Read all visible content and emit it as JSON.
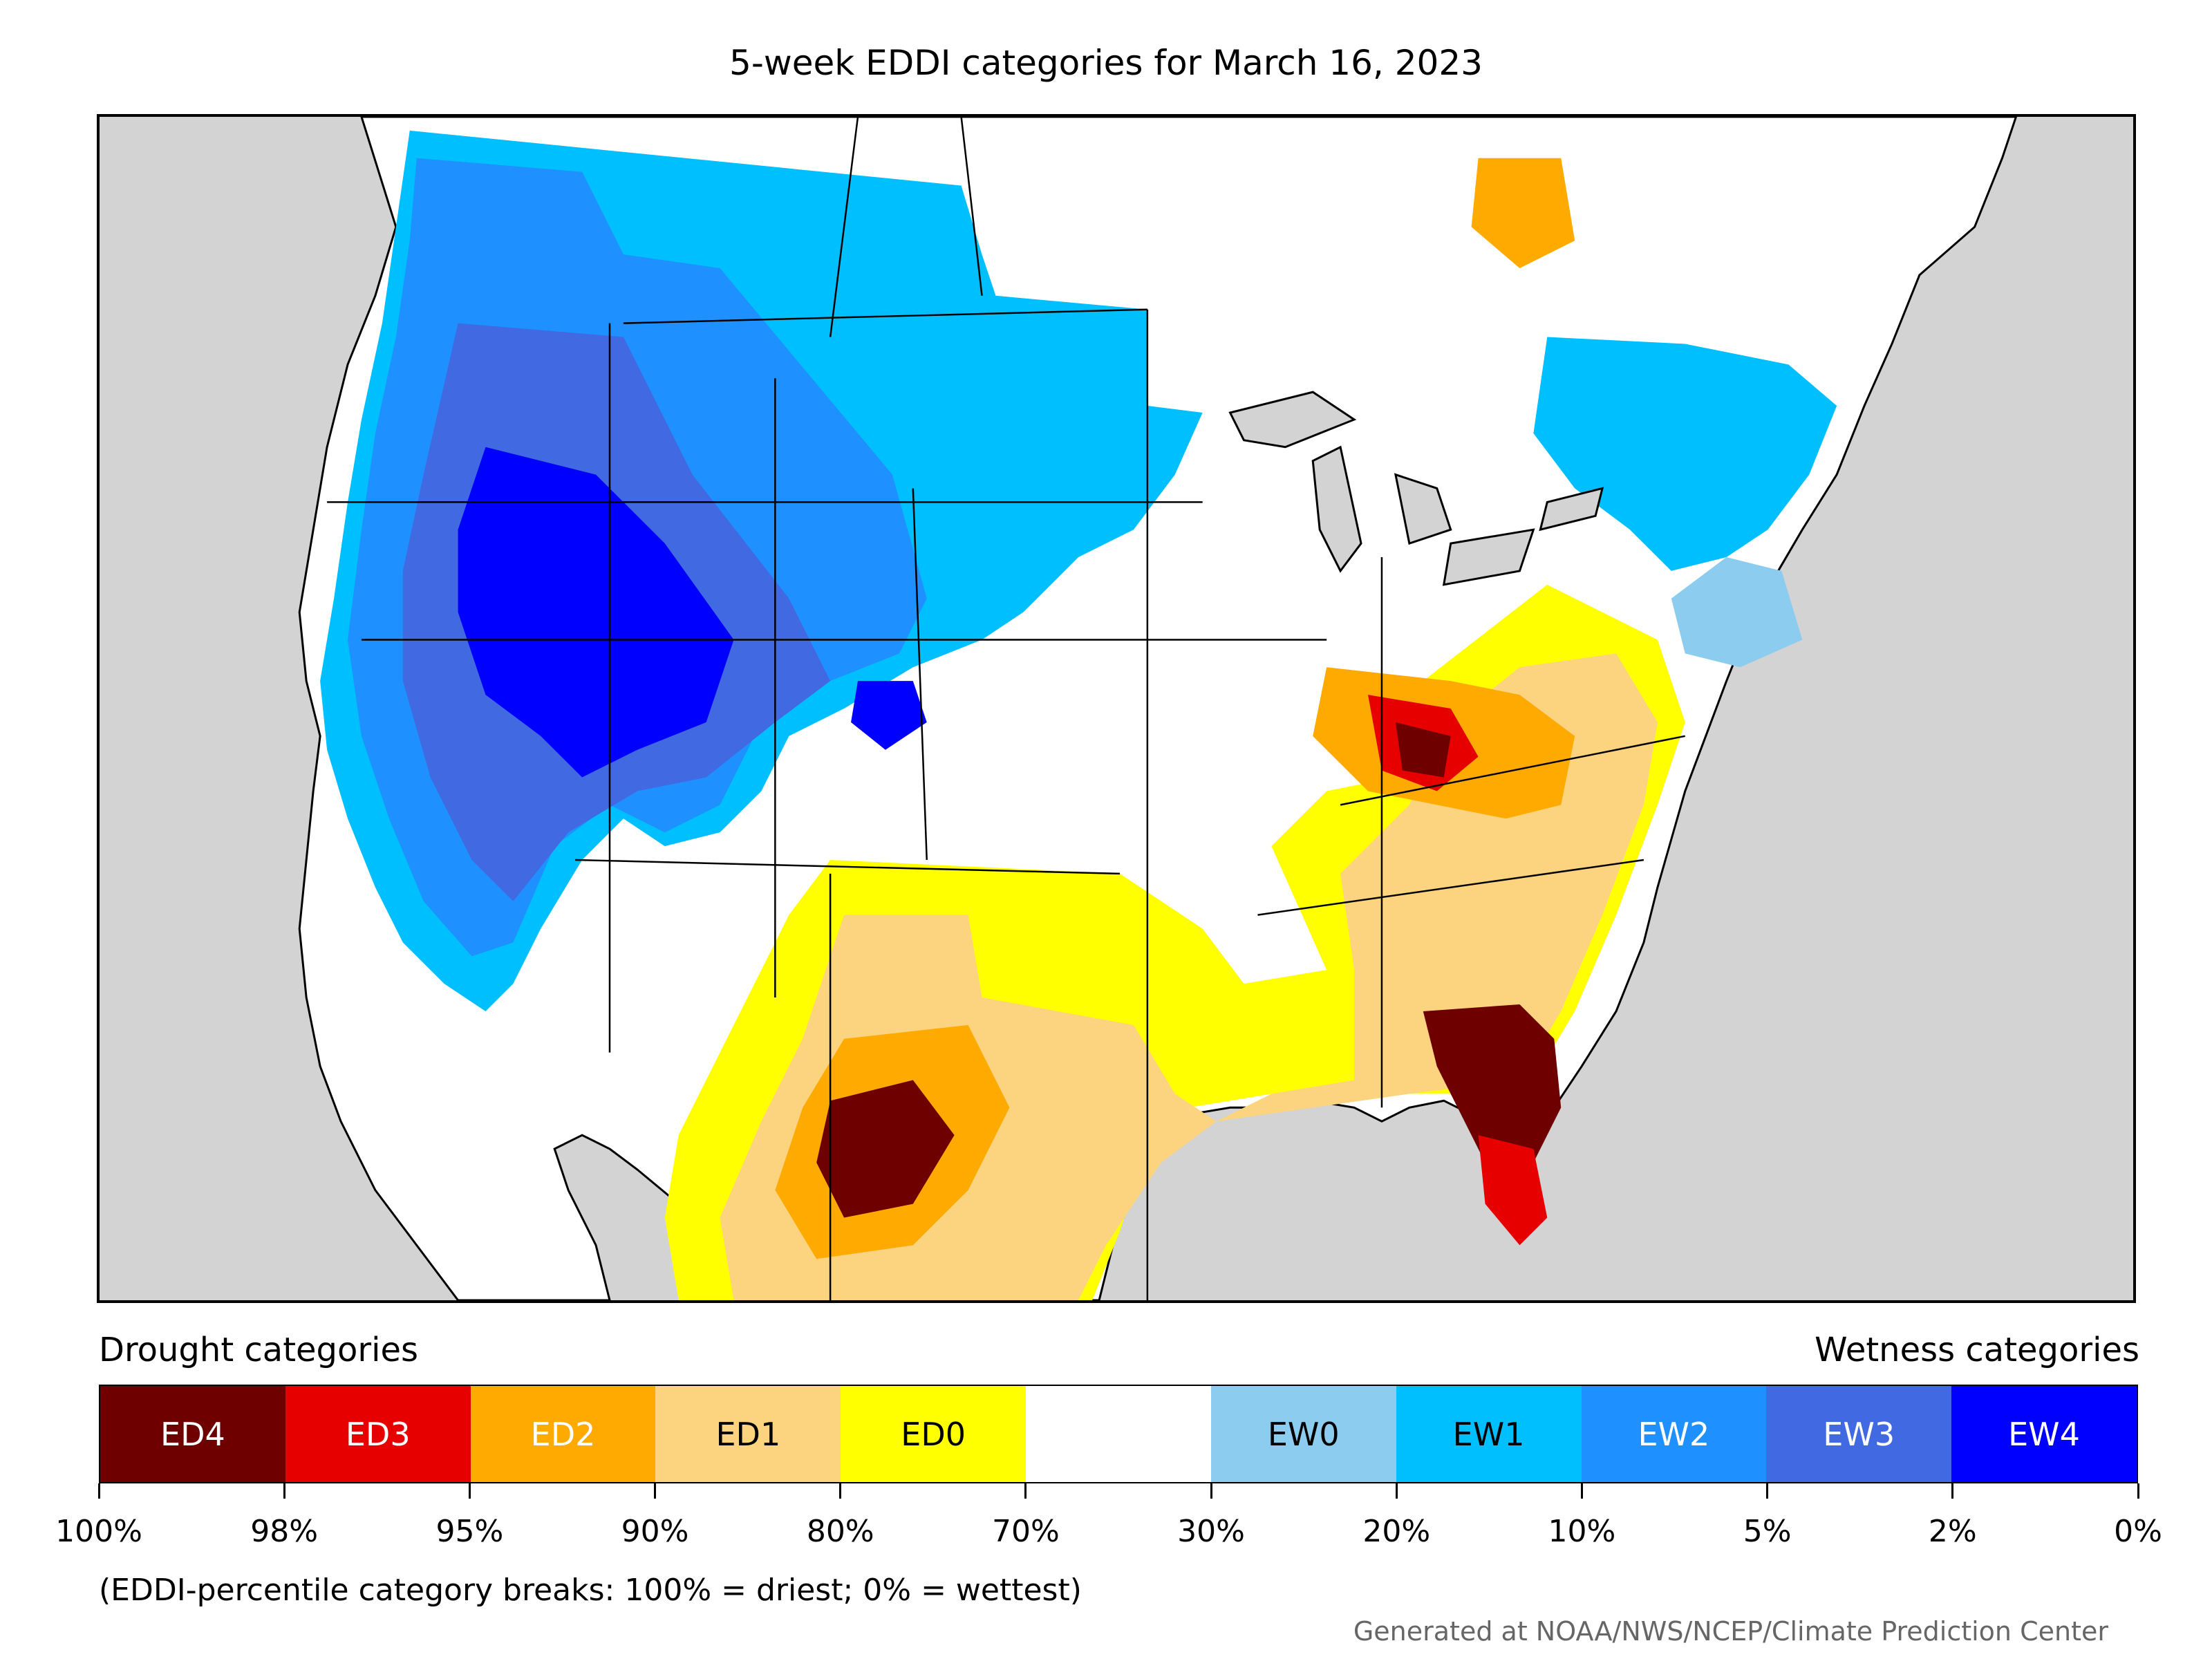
{
  "title": "5-week EDDI categories for March 16, 2023",
  "legend": {
    "drought_heading": "Drought categories",
    "wetness_heading": "Wetness categories",
    "categories": [
      {
        "label": "ED4",
        "color": "#6e0000",
        "text_color": "#ffffff"
      },
      {
        "label": "ED3",
        "color": "#e60000",
        "text_color": "#ffffff"
      },
      {
        "label": "ED2",
        "color": "#ffaa00",
        "text_color": "#ffffff"
      },
      {
        "label": "ED1",
        "color": "#fcd37f",
        "text_color": "#000000"
      },
      {
        "label": "ED0",
        "color": "#ffff00",
        "text_color": "#000000"
      },
      {
        "label": "",
        "color": "#ffffff",
        "text_color": "#000000"
      },
      {
        "label": "EW0",
        "color": "#8ccdef",
        "text_color": "#000000"
      },
      {
        "label": "EW1",
        "color": "#00bfff",
        "text_color": "#000000"
      },
      {
        "label": "EW2",
        "color": "#1e90ff",
        "text_color": "#ffffff"
      },
      {
        "label": "EW3",
        "color": "#4169e1",
        "text_color": "#ffffff"
      },
      {
        "label": "EW4",
        "color": "#0000ff",
        "text_color": "#ffffff"
      }
    ],
    "tick_labels": [
      "100%",
      "98%",
      "95%",
      "90%",
      "80%",
      "70%",
      "30%",
      "20%",
      "10%",
      "5%",
      "2%",
      "0%"
    ]
  },
  "note": "(EDDI-percentile category breaks: 100% = driest; 0% = wettest)",
  "credit": "Generated at NOAA/NWS/NCEP/Climate Prediction Center",
  "colors": {
    "land_background": "#d3d3d3"
  }
}
